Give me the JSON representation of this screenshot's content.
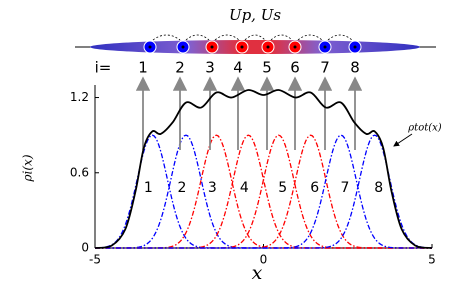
{
  "chart_data": {
    "type": "line",
    "title": "Up, Us",
    "index_label": "i=",
    "xlabel": "x",
    "ylabel": "ρi(x)",
    "annotation": "ρtot(x)",
    "xlim": [
      -5,
      5
    ],
    "xticks": [
      -5,
      0,
      5
    ],
    "ylim": [
      0,
      1.3
    ],
    "yticks": [
      0,
      0.6,
      1.2
    ],
    "sites": [
      {
        "label": "1",
        "center": -3.3,
        "peak": 0.9,
        "sigma": 0.45,
        "color": "#0000ff"
      },
      {
        "label": "2",
        "center": -2.3,
        "peak": 0.9,
        "sigma": 0.45,
        "color": "#0000ff"
      },
      {
        "label": "3",
        "center": -1.4,
        "peak": 0.9,
        "sigma": 0.45,
        "color": "#ff0000"
      },
      {
        "label": "4",
        "center": -0.45,
        "peak": 0.9,
        "sigma": 0.45,
        "color": "#ff0000"
      },
      {
        "label": "5",
        "center": 0.45,
        "peak": 0.9,
        "sigma": 0.45,
        "color": "#ff0000"
      },
      {
        "label": "6",
        "center": 1.4,
        "peak": 0.9,
        "sigma": 0.45,
        "color": "#ff0000"
      },
      {
        "label": "7",
        "center": 2.3,
        "peak": 0.9,
        "sigma": 0.45,
        "color": "#0000ff"
      },
      {
        "label": "8",
        "center": 3.3,
        "peak": 0.9,
        "sigma": 0.45,
        "color": "#0000ff"
      }
    ],
    "series": [
      {
        "color": "#000000",
        "x": [
          -5,
          -4.5,
          -4.1,
          -3.8,
          -3.55,
          -3.3,
          -3.05,
          -2.7,
          -2.3,
          -1.85,
          -1.4,
          -0.95,
          -0.45,
          0,
          0.45,
          0.95,
          1.4,
          1.85,
          2.3,
          2.7,
          3.05,
          3.3,
          3.55,
          3.8,
          4.1,
          4.5,
          5
        ],
        "values": [
          0,
          0.02,
          0.15,
          0.45,
          0.8,
          0.93,
          0.91,
          1.0,
          1.16,
          1.12,
          1.24,
          1.2,
          1.26,
          1.22,
          1.26,
          1.2,
          1.24,
          1.12,
          1.16,
          1.0,
          0.91,
          0.93,
          0.8,
          0.45,
          0.15,
          0.02,
          0
        ]
      }
    ]
  }
}
